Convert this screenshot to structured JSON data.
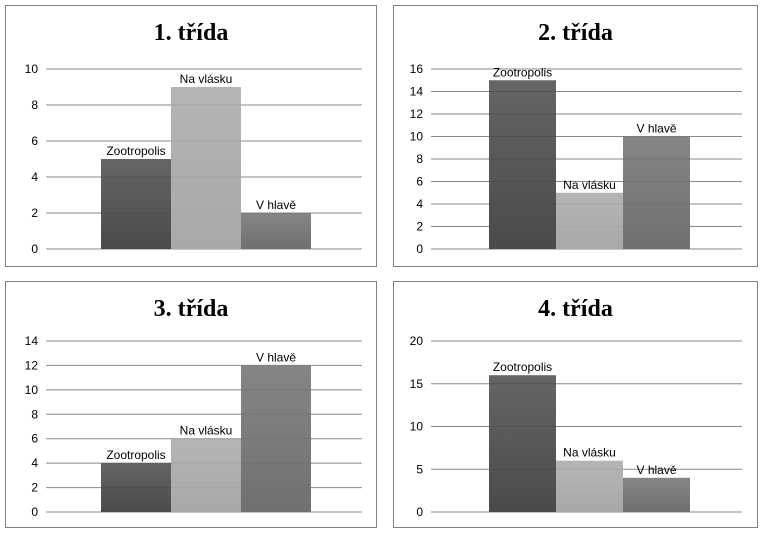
{
  "chart_data": [
    {
      "type": "bar",
      "title": "1. třída",
      "categories": [
        "Zootropolis",
        "Na vlásku",
        "V hlavě"
      ],
      "values": [
        5,
        9,
        2
      ],
      "ylim": [
        0,
        10
      ],
      "yticks": [
        0,
        2,
        4,
        6,
        8,
        10
      ],
      "grid": true,
      "legend": "none"
    },
    {
      "type": "bar",
      "title": "2. třída",
      "categories": [
        "Zootropolis",
        "Na vlásku",
        "V hlavě"
      ],
      "values": [
        15,
        5,
        10
      ],
      "ylim": [
        0,
        16
      ],
      "yticks": [
        0,
        2,
        4,
        6,
        8,
        10,
        12,
        14,
        16
      ],
      "grid": true,
      "legend": "none"
    },
    {
      "type": "bar",
      "title": "3. třída",
      "categories": [
        "Zootropolis",
        "Na vlásku",
        "V hlavě"
      ],
      "values": [
        4,
        6,
        12
      ],
      "ylim": [
        0,
        14
      ],
      "yticks": [
        0,
        2,
        4,
        6,
        8,
        10,
        12,
        14
      ],
      "grid": true,
      "legend": "none"
    },
    {
      "type": "bar",
      "title": "4. třída",
      "categories": [
        "Zootropolis",
        "Na vlásku",
        "V hlavě"
      ],
      "values": [
        16,
        6,
        4
      ],
      "ylim": [
        0,
        20
      ],
      "yticks": [
        0,
        5,
        10,
        15,
        20
      ],
      "grid": true,
      "legend": "none"
    }
  ],
  "colors": {
    "bar_dark": "#4a4a4a",
    "bar_light": "#a8a8a8",
    "bar_mid": "#707070",
    "grid": "#888888",
    "border": "#7f7f7f"
  }
}
